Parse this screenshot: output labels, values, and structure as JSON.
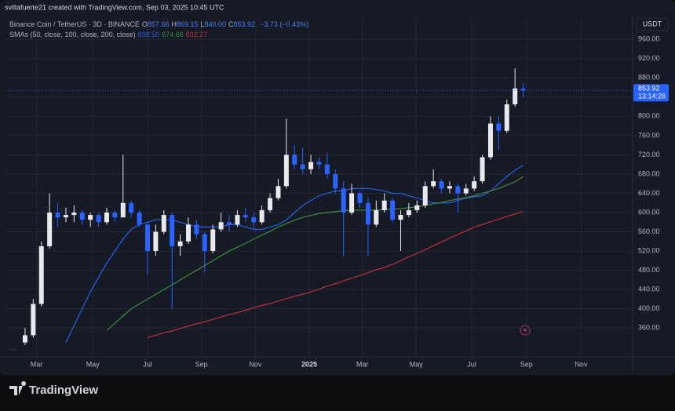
{
  "header": {
    "credit": "svillafuerte21 created with TradingView.com, Sep 03, 2025 10:45 UTC"
  },
  "chart_data": {
    "type": "candlestick",
    "title": "Binance Coin / TetherUS · 3D · BINANCE",
    "ohlc_legend": [
      {
        "label": "O",
        "value": "857.66"
      },
      {
        "label": "H",
        "value": "869.15"
      },
      {
        "label": "L",
        "value": "840.00"
      },
      {
        "label": "C",
        "value": "853.92"
      }
    ],
    "change": "−3.73 (−0.43%)",
    "indicator_title": "SMAs (50, close, 100, close, 200, close)",
    "x": [
      0,
      1,
      2,
      3,
      4,
      5,
      6,
      7,
      8,
      9,
      10,
      11,
      12,
      13,
      14,
      15,
      16,
      17,
      18,
      19,
      20,
      21,
      22,
      23,
      24,
      25,
      26,
      27,
      28,
      29,
      30,
      31,
      32,
      33,
      34,
      35,
      36,
      37,
      38,
      39,
      40,
      41,
      42,
      43,
      44,
      45,
      46,
      47,
      48,
      49,
      50,
      51,
      52,
      53,
      54,
      55,
      56,
      57,
      58,
      59,
      60,
      61
    ],
    "open": [
      330,
      345,
      410,
      530,
      600,
      590,
      595,
      600,
      585,
      595,
      580,
      600,
      590,
      620,
      600,
      575,
      520,
      560,
      595,
      530,
      540,
      575,
      555,
      520,
      565,
      580,
      575,
      595,
      590,
      580,
      605,
      630,
      655,
      720,
      700,
      690,
      705,
      700,
      680,
      650,
      600,
      640,
      620,
      575,
      605,
      625,
      585,
      595,
      605,
      615,
      655,
      665,
      650,
      655,
      640,
      650,
      665,
      715,
      785,
      770,
      825,
      857.66
    ],
    "high": [
      360,
      420,
      540,
      640,
      620,
      610,
      615,
      605,
      600,
      600,
      610,
      605,
      720,
      625,
      605,
      580,
      575,
      605,
      600,
      555,
      590,
      585,
      560,
      575,
      600,
      595,
      605,
      610,
      600,
      615,
      640,
      670,
      795,
      740,
      735,
      720,
      715,
      725,
      690,
      665,
      660,
      645,
      630,
      625,
      640,
      630,
      605,
      620,
      625,
      665,
      690,
      670,
      665,
      660,
      660,
      675,
      720,
      800,
      800,
      835,
      900,
      869.15
    ],
    "low": [
      325,
      340,
      405,
      525,
      570,
      580,
      580,
      575,
      570,
      570,
      575,
      580,
      590,
      590,
      570,
      470,
      510,
      555,
      400,
      510,
      535,
      545,
      475,
      515,
      560,
      560,
      570,
      580,
      565,
      575,
      600,
      625,
      650,
      690,
      680,
      680,
      690,
      670,
      640,
      510,
      595,
      610,
      510,
      570,
      600,
      580,
      520,
      590,
      600,
      610,
      650,
      640,
      640,
      600,
      635,
      645,
      660,
      710,
      730,
      765,
      820,
      840
    ],
    "close": [
      345,
      410,
      530,
      600,
      590,
      595,
      600,
      585,
      595,
      580,
      600,
      590,
      620,
      600,
      575,
      520,
      560,
      595,
      530,
      540,
      575,
      555,
      520,
      565,
      580,
      575,
      595,
      590,
      580,
      605,
      630,
      655,
      720,
      700,
      690,
      705,
      700,
      680,
      650,
      600,
      640,
      620,
      575,
      605,
      625,
      585,
      595,
      605,
      615,
      655,
      665,
      650,
      655,
      640,
      650,
      665,
      715,
      785,
      770,
      825,
      858,
      853.92
    ],
    "up_color": "#e8e9ec",
    "down_color": "#2962ff",
    "series": [
      {
        "color": "#2a5ee8",
        "last_label": "698.50",
        "values": [
          null,
          null,
          null,
          null,
          null,
          330,
          365,
          400,
          435,
          465,
          495,
          520,
          545,
          565,
          575,
          580,
          585,
          585,
          585,
          580,
          575,
          570,
          570,
          570,
          570,
          575,
          575,
          570,
          565,
          565,
          570,
          575,
          585,
          600,
          615,
          625,
          635,
          640,
          645,
          645,
          650,
          650,
          650,
          648,
          645,
          640,
          640,
          635,
          630,
          625,
          620,
          620,
          620,
          625,
          630,
          633,
          635,
          645,
          660,
          675,
          688,
          698.5
        ]
      },
      {
        "color": "#3f8a3f",
        "last_label": "674.66",
        "values": [
          null,
          null,
          null,
          null,
          null,
          null,
          null,
          null,
          null,
          null,
          355,
          370,
          385,
          400,
          410,
          420,
          430,
          440,
          450,
          460,
          470,
          480,
          490,
          500,
          510,
          520,
          528,
          536,
          545,
          553,
          561,
          570,
          577,
          584,
          590,
          594,
          598,
          600,
          602,
          604,
          605,
          605,
          605,
          605,
          606,
          607,
          608,
          610,
          612,
          615,
          618,
          621,
          625,
          628,
          631,
          635,
          640,
          645,
          650,
          657,
          664,
          674.66
        ]
      },
      {
        "color": "#c0303a",
        "last_label": "602.27",
        "values": [
          null,
          null,
          null,
          null,
          null,
          null,
          null,
          null,
          null,
          null,
          null,
          null,
          null,
          null,
          null,
          340,
          345,
          350,
          354,
          359,
          364,
          369,
          373,
          378,
          383,
          388,
          392,
          397,
          402,
          407,
          411,
          416,
          421,
          426,
          430,
          435,
          441,
          447,
          452,
          458,
          464,
          469,
          475,
          481,
          486,
          492,
          500,
          508,
          515,
          523,
          531,
          539,
          547,
          554,
          562,
          570,
          575,
          581,
          586,
          592,
          597,
          602.27
        ]
      }
    ],
    "xlim": [
      -2.3,
      74.4
    ],
    "xticks": [
      {
        "value": 1.4,
        "label": "Mar"
      },
      {
        "value": 8.3,
        "label": "May"
      },
      {
        "value": 15.0,
        "label": "Jul"
      },
      {
        "value": 21.6,
        "label": "Sep"
      },
      {
        "value": 28.2,
        "label": "Nov"
      },
      {
        "value": 34.8,
        "label": "2025"
      },
      {
        "value": 41.3,
        "label": "Mar"
      },
      {
        "value": 47.9,
        "label": "May"
      },
      {
        "value": 54.7,
        "label": "Jul"
      },
      {
        "value": 61.4,
        "label": "Sep"
      },
      {
        "value": 68.1,
        "label": "Nov"
      }
    ],
    "ylim": [
      300,
      1006
    ],
    "yticks": [
      {
        "value": 360,
        "label": "360.00"
      },
      {
        "value": 400,
        "label": "400.00"
      },
      {
        "value": 440,
        "label": "440.00"
      },
      {
        "value": 480,
        "label": "480.00"
      },
      {
        "value": 520,
        "label": "520.00"
      },
      {
        "value": 560,
        "label": "560.00"
      },
      {
        "value": 600,
        "label": "600.00"
      },
      {
        "value": 640,
        "label": "640.00"
      },
      {
        "value": 680,
        "label": "680.00"
      },
      {
        "value": 720,
        "label": "720.00"
      },
      {
        "value": 760,
        "label": "760.00"
      },
      {
        "value": 800,
        "label": "800.00"
      },
      {
        "value": 840,
        "label": "840.00"
      },
      {
        "value": 880,
        "label": "880.00"
      },
      {
        "value": 920,
        "label": "920.00"
      },
      {
        "value": 960,
        "label": "960.00"
      }
    ],
    "grid": true,
    "currency": "USDT",
    "price_tag": {
      "value": "853.92",
      "countdown": "13:14:26"
    }
  },
  "footer": {
    "logo": "TradingView"
  }
}
